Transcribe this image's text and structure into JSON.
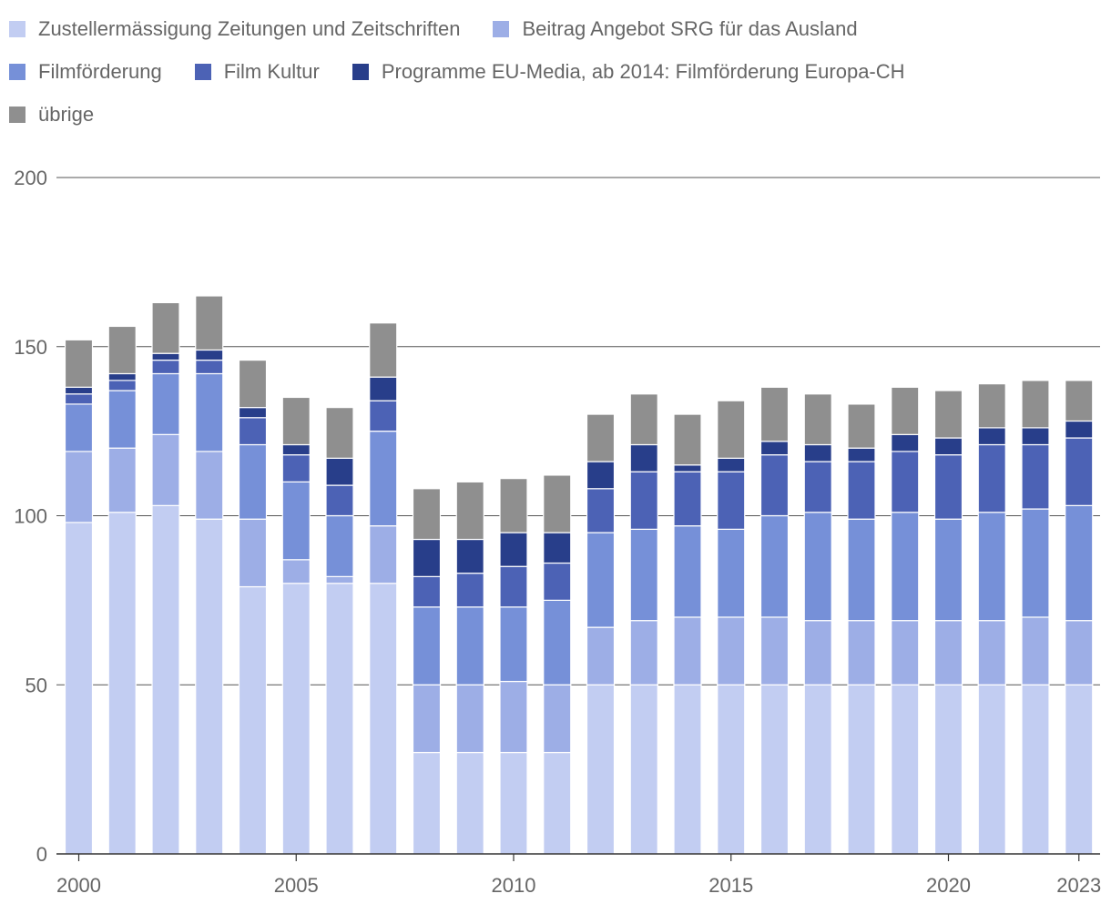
{
  "chart_data": {
    "type": "bar",
    "stacked": true,
    "title": "",
    "xlabel": "",
    "ylabel": "",
    "ylim": [
      0,
      200
    ],
    "yticks": [
      0,
      50,
      100,
      150,
      200
    ],
    "xtick_labels": [
      "2000",
      "2005",
      "2010",
      "2015",
      "2020",
      "2023"
    ],
    "legend_position": "top",
    "categories": [
      "2000",
      "2001",
      "2002",
      "2003",
      "2004",
      "2005",
      "2006",
      "2007",
      "2008",
      "2009",
      "2010",
      "2011",
      "2012",
      "2013",
      "2014",
      "2015",
      "2016",
      "2017",
      "2018",
      "2019",
      "2020",
      "2021",
      "2022",
      "2023"
    ],
    "series": [
      {
        "name": "Zustellermässigung Zeitungen und Zeitschriften",
        "color": "#c2cdf2",
        "values": [
          98,
          101,
          103,
          99,
          79,
          80,
          80,
          80,
          30,
          30,
          30,
          30,
          50,
          50,
          50,
          50,
          50,
          50,
          50,
          50,
          50,
          50,
          50,
          50
        ]
      },
      {
        "name": "Beitrag Angebot SRG für das Ausland",
        "color": "#9daee6",
        "values": [
          21,
          19,
          21,
          20,
          20,
          7,
          2,
          17,
          20,
          20,
          21,
          20,
          17,
          19,
          20,
          20,
          20,
          19,
          19,
          19,
          19,
          19,
          20,
          19
        ]
      },
      {
        "name": "Filmförderung",
        "color": "#7690d8",
        "values": [
          14,
          17,
          18,
          23,
          22,
          23,
          18,
          28,
          23,
          23,
          22,
          25,
          28,
          27,
          27,
          26,
          30,
          32,
          30,
          32,
          30,
          32,
          32,
          34
        ]
      },
      {
        "name": "Film Kultur",
        "color": "#4c62b5",
        "values": [
          3,
          3,
          4,
          4,
          8,
          8,
          9,
          9,
          9,
          10,
          12,
          11,
          13,
          17,
          16,
          17,
          18,
          15,
          17,
          18,
          19,
          20,
          19,
          20
        ]
      },
      {
        "name": "Programme EU-Media, ab 2014: Filmförderung Europa-CH",
        "color": "#283e8a",
        "values": [
          2,
          2,
          2,
          3,
          3,
          3,
          8,
          7,
          11,
          10,
          10,
          9,
          8,
          8,
          2,
          4,
          4,
          5,
          4,
          5,
          5,
          5,
          5,
          5
        ]
      },
      {
        "name": "übrige",
        "color": "#8f8f8f",
        "values": [
          14,
          14,
          15,
          16,
          14,
          14,
          15,
          16,
          15,
          17,
          16,
          17,
          14,
          15,
          15,
          17,
          16,
          15,
          13,
          14,
          14,
          13,
          14,
          12
        ]
      }
    ]
  }
}
